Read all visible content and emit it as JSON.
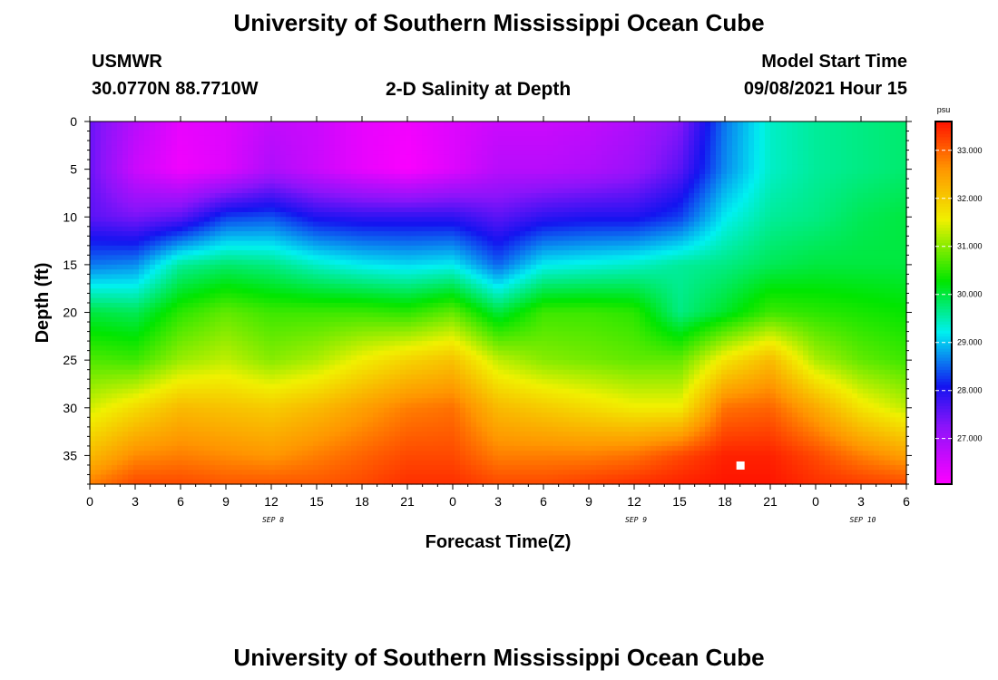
{
  "header": {
    "title": "University of Southern Mississippi Ocean Cube",
    "station": "USMWR",
    "coords": "30.0770N  88.7710W",
    "plot_title": "2-D Salinity at Depth",
    "model_label": "Model Start Time",
    "model_time": "09/08/2021 Hour 15"
  },
  "footer": {
    "title": "University of Southern Mississippi Ocean Cube"
  },
  "chart_data": {
    "type": "heatmap",
    "title": "2-D Salinity at Depth",
    "xlabel": "Forecast Time(Z)",
    "ylabel": "Depth (ft)",
    "x_range_hours": [
      0,
      54
    ],
    "x_tick_labels": [
      "0",
      "3",
      "6",
      "9",
      "12",
      "15",
      "18",
      "21",
      "0",
      "3",
      "6",
      "9",
      "12",
      "15",
      "18",
      "21",
      "0",
      "3",
      "6"
    ],
    "date_labels": [
      {
        "text": "SEP 8",
        "hour": 12
      },
      {
        "text": "SEP 9",
        "hour": 36
      },
      {
        "text": "SEP 10",
        "hour": 51
      }
    ],
    "y_range_ft": [
      0,
      38
    ],
    "y_ticks": [
      0,
      5,
      10,
      15,
      20,
      25,
      30,
      35
    ],
    "y_inverted": true,
    "colorbar": {
      "unit": "psu",
      "min": 26.05,
      "max": 33.6,
      "tick_values": [
        27.0,
        28.0,
        29.0,
        30.0,
        31.0,
        32.0,
        33.0
      ],
      "tick_labels": [
        "27.000",
        "28.000",
        "29.000",
        "30.000",
        "31.000",
        "32.000",
        "33.000"
      ]
    },
    "marker": {
      "hour": 43,
      "depth_ft": 36
    },
    "grid_depths_ft": [
      0,
      5,
      10,
      15,
      20,
      25,
      30,
      35,
      38
    ],
    "columns": [
      {
        "hour": 0,
        "values": [
          27.5,
          27.5,
          27.6,
          28.6,
          30.0,
          30.7,
          31.4,
          32.2,
          32.8
        ]
      },
      {
        "hour": 3,
        "values": [
          26.8,
          26.6,
          27.4,
          28.7,
          29.9,
          30.6,
          31.8,
          32.7,
          33.2
        ]
      },
      {
        "hour": 6,
        "values": [
          26.3,
          26.2,
          27.6,
          29.6,
          30.5,
          31.1,
          32.2,
          32.8,
          33.2
        ]
      },
      {
        "hour": 9,
        "values": [
          26.4,
          26.4,
          28.3,
          29.8,
          30.8,
          31.3,
          32.1,
          32.7,
          33.1
        ]
      },
      {
        "hour": 12,
        "values": [
          26.7,
          26.9,
          28.4,
          29.7,
          30.6,
          31.0,
          32.0,
          32.6,
          33.1
        ]
      },
      {
        "hour": 15,
        "values": [
          26.6,
          26.6,
          28.0,
          29.4,
          30.6,
          31.2,
          32.2,
          32.8,
          33.1
        ]
      },
      {
        "hour": 18,
        "values": [
          26.3,
          26.3,
          27.9,
          29.2,
          30.6,
          31.6,
          32.5,
          33.0,
          33.2
        ]
      },
      {
        "hour": 21,
        "values": [
          26.2,
          26.1,
          27.9,
          29.1,
          30.5,
          31.9,
          32.8,
          33.2,
          33.4
        ]
      },
      {
        "hour": 24,
        "values": [
          26.4,
          26.4,
          27.9,
          29.2,
          30.8,
          32.1,
          32.9,
          33.2,
          33.4
        ]
      },
      {
        "hour": 27,
        "values": [
          26.6,
          26.8,
          27.6,
          28.5,
          30.0,
          31.3,
          32.2,
          32.8,
          33.2
        ]
      },
      {
        "hour": 30,
        "values": [
          26.6,
          26.8,
          27.9,
          29.2,
          30.6,
          31.0,
          32.0,
          32.8,
          33.2
        ]
      },
      {
        "hour": 33,
        "values": [
          26.7,
          26.9,
          28.0,
          29.3,
          30.6,
          30.9,
          31.8,
          32.8,
          33.3
        ]
      },
      {
        "hour": 36,
        "values": [
          26.9,
          27.1,
          28.0,
          29.4,
          30.5,
          30.8,
          31.6,
          32.9,
          33.4
        ]
      },
      {
        "hour": 39,
        "values": [
          27.3,
          27.6,
          28.3,
          29.6,
          29.7,
          30.8,
          31.6,
          33.2,
          33.5
        ]
      },
      {
        "hour": 42,
        "values": [
          28.6,
          28.7,
          29.2,
          29.7,
          30.1,
          31.7,
          32.9,
          33.5,
          33.6
        ]
      },
      {
        "hour": 45,
        "values": [
          29.4,
          29.4,
          29.6,
          29.9,
          30.6,
          32.2,
          33.0,
          33.5,
          33.6
        ]
      },
      {
        "hour": 48,
        "values": [
          29.6,
          29.6,
          29.7,
          30.0,
          30.5,
          31.2,
          32.4,
          33.2,
          33.4
        ]
      },
      {
        "hour": 51,
        "values": [
          29.7,
          29.7,
          29.9,
          30.0,
          30.4,
          30.8,
          31.7,
          32.8,
          33.3
        ]
      },
      {
        "hour": 54,
        "values": [
          29.8,
          29.8,
          30.0,
          30.0,
          30.3,
          30.6,
          31.3,
          32.5,
          33.2
        ]
      }
    ]
  }
}
